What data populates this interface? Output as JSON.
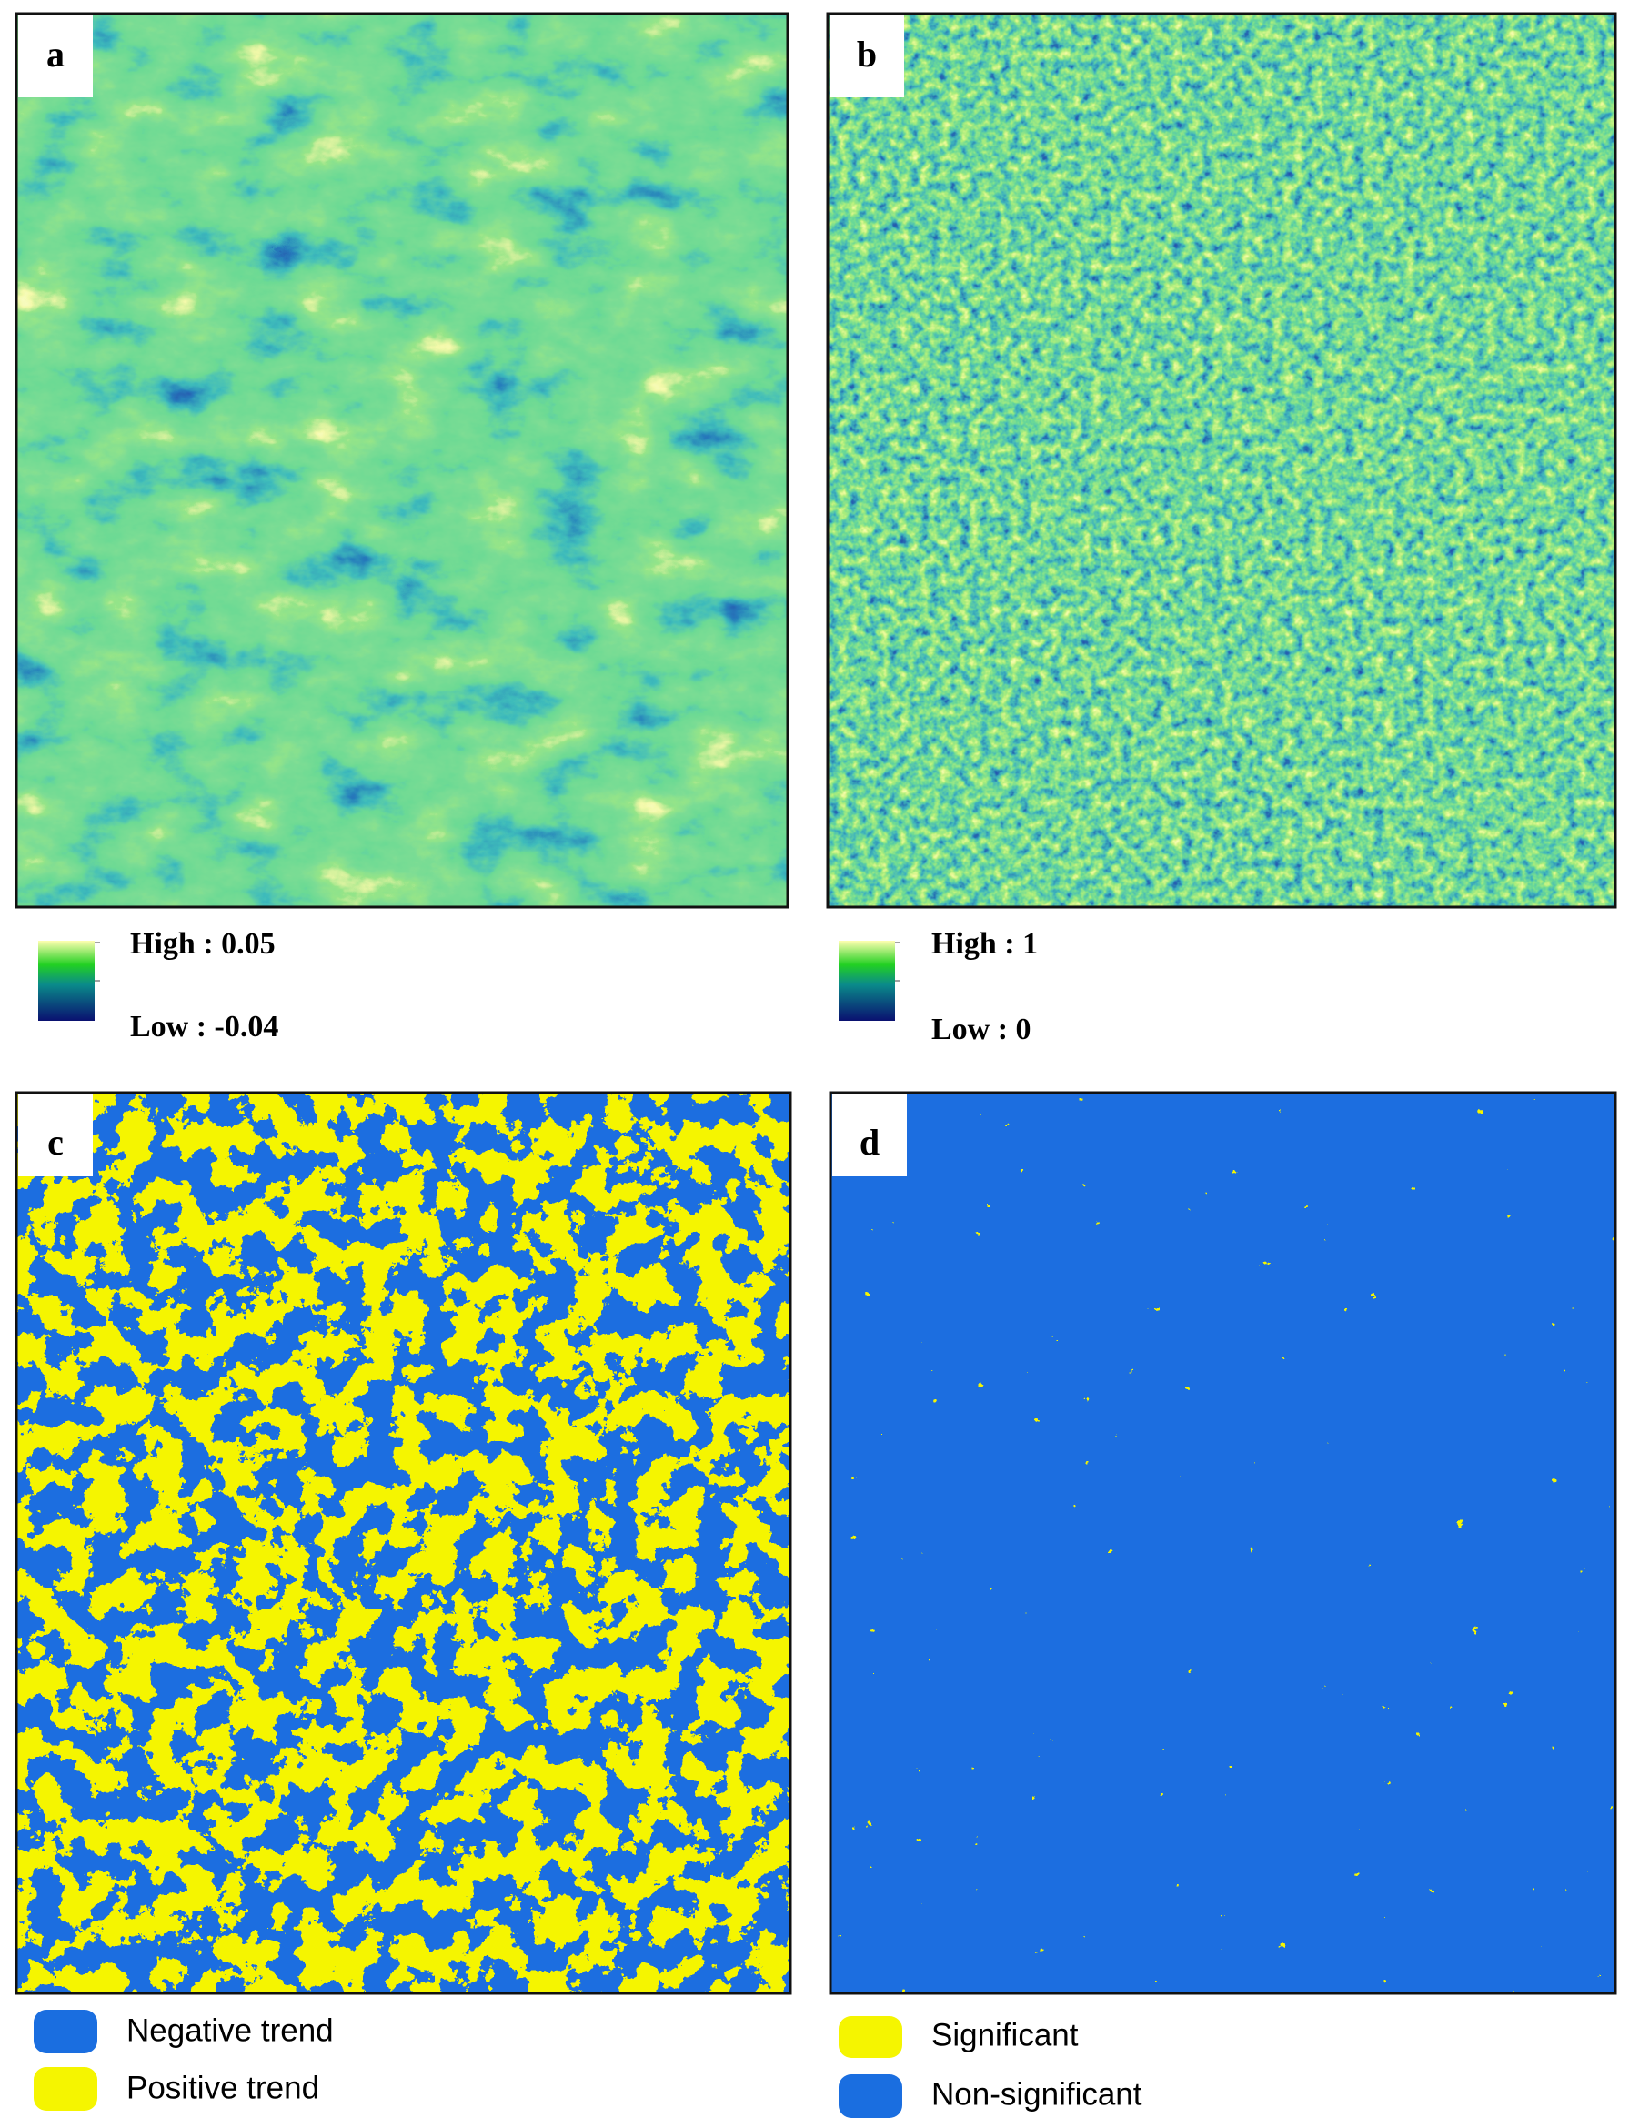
{
  "panels": [
    {
      "label": "a",
      "legend": {
        "high": "High : 0.05",
        "low": "Low : -0.04"
      }
    },
    {
      "label": "b",
      "legend": {
        "high": "High : 1",
        "low": "Low : 0"
      }
    },
    {
      "label": "c",
      "legend": {
        "items": [
          {
            "text": "Negative trend",
            "color": "#1a6ee0"
          },
          {
            "text": "Positive trend",
            "color": "#f5f500"
          }
        ]
      }
    },
    {
      "label": "d",
      "legend": {
        "items": [
          {
            "text": "Significant",
            "color": "#f5f500"
          },
          {
            "text": "Non-significant",
            "color": "#1a6ee0"
          }
        ]
      }
    }
  ]
}
